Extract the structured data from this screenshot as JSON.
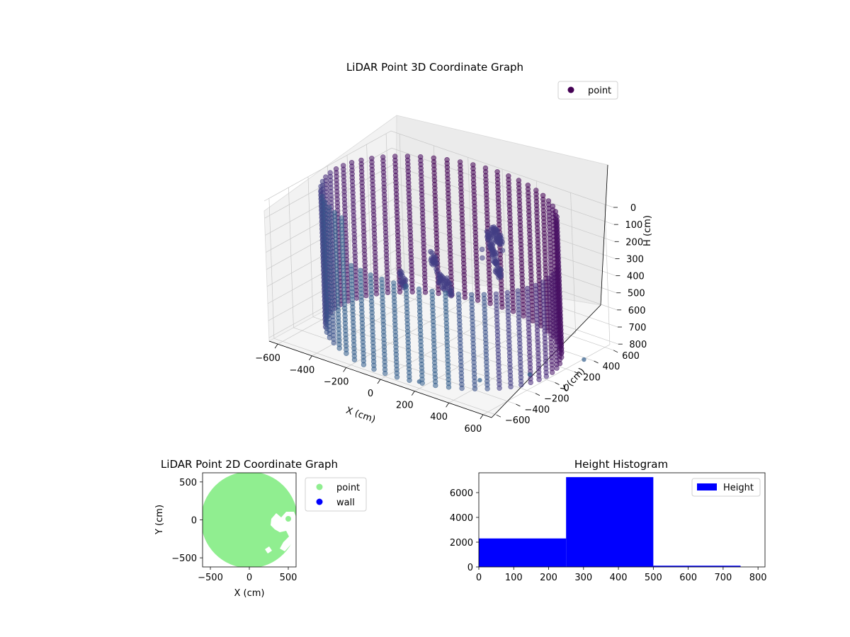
{
  "chart_data": [
    {
      "type": "scatter",
      "projection": "3d",
      "title": "LiDAR Point 3D Coordinate Graph",
      "xlabel": "X (cm)",
      "ylabel": "Y (cm)",
      "zlabel": "H (cm)",
      "xlim": [
        -650,
        650
      ],
      "ylim": [
        -650,
        650
      ],
      "zlim": [
        820,
        0
      ],
      "xticks": [
        "−600",
        "−400",
        "−200",
        "0",
        "200",
        "400",
        "600"
      ],
      "yticks": [
        "−600",
        "−400",
        "−200",
        "0",
        "200",
        "400",
        "600"
      ],
      "zticks": [
        "0",
        "100",
        "200",
        "300",
        "400",
        "500",
        "600",
        "700",
        "800"
      ],
      "legend": {
        "position": "top-right",
        "entries": [
          {
            "name": "point",
            "color": "#440154"
          }
        ]
      },
      "shape": {
        "ring_radius": 600,
        "h_min": 0,
        "h_max": 800,
        "near_side_min_h": 250
      },
      "colormap": "viridis",
      "grid": true
    },
    {
      "type": "scatter",
      "title": "LiDAR Point 2D Coordinate Graph",
      "xlabel": "X (cm)",
      "ylabel": "Y (cm)",
      "xlim": [
        -600,
        600
      ],
      "ylim": [
        -620,
        620
      ],
      "xticks": [
        -500,
        0,
        500
      ],
      "yticks": [
        -500,
        0,
        500
      ],
      "xtick_labels": [
        "−500",
        "0",
        "500"
      ],
      "ytick_labels": [
        "−500",
        "0",
        "500"
      ],
      "legend": {
        "position": "outside-right",
        "entries": [
          {
            "name": "point",
            "color": "#90ee90"
          },
          {
            "name": "wall",
            "color": "#0000ff"
          }
        ]
      },
      "region": {
        "radius": 620
      }
    },
    {
      "type": "bar",
      "title": "Height Histogram",
      "xlim": [
        0,
        820
      ],
      "ylim": [
        0,
        7600
      ],
      "xticks": [
        0,
        100,
        200,
        300,
        400,
        500,
        600,
        700,
        800
      ],
      "yticks": [
        0,
        2000,
        4000,
        6000
      ],
      "bins": [
        {
          "x0": 0,
          "x1": 250,
          "value": 2300
        },
        {
          "x0": 250,
          "x1": 500,
          "value": 7250
        },
        {
          "x0": 500,
          "x1": 750,
          "value": 100
        }
      ],
      "color": "#0000ff",
      "legend": {
        "position": "top-right",
        "entries": [
          {
            "name": "Height",
            "color": "#0000ff"
          }
        ]
      }
    }
  ]
}
